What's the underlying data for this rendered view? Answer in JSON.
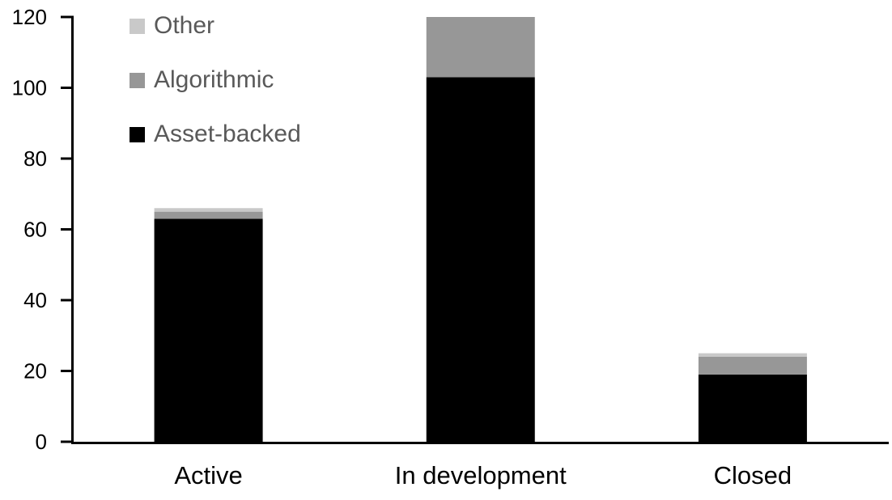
{
  "chart_data": {
    "type": "bar",
    "stacked": true,
    "title": "",
    "categories": [
      "Active",
      "In development",
      "Closed"
    ],
    "series": [
      {
        "name": "Asset-backed",
        "color": "#000000",
        "values": [
          63,
          103,
          19
        ]
      },
      {
        "name": "Algorithmic",
        "color": "#979797",
        "values": [
          2,
          17,
          5
        ]
      },
      {
        "name": "Other",
        "color": "#c9c9c9",
        "values": [
          1,
          0,
          1
        ]
      }
    ],
    "totals": [
      66,
      120,
      25
    ],
    "legend": [
      {
        "label": "Other",
        "color": "#c9c9c9"
      },
      {
        "label": "Algorithmic",
        "color": "#979797"
      },
      {
        "label": "Asset-backed",
        "color": "#000000"
      }
    ],
    "legend_position": "top-left",
    "xlabel": "",
    "ylabel": "",
    "ylim": [
      0,
      120
    ],
    "yticks": [
      0,
      20,
      40,
      60,
      80,
      100,
      120
    ],
    "grid": false,
    "axis_color": "#000000",
    "tick_label_color": "#000000",
    "category_label_color": "#000000",
    "legend_text_color": "#595959"
  }
}
